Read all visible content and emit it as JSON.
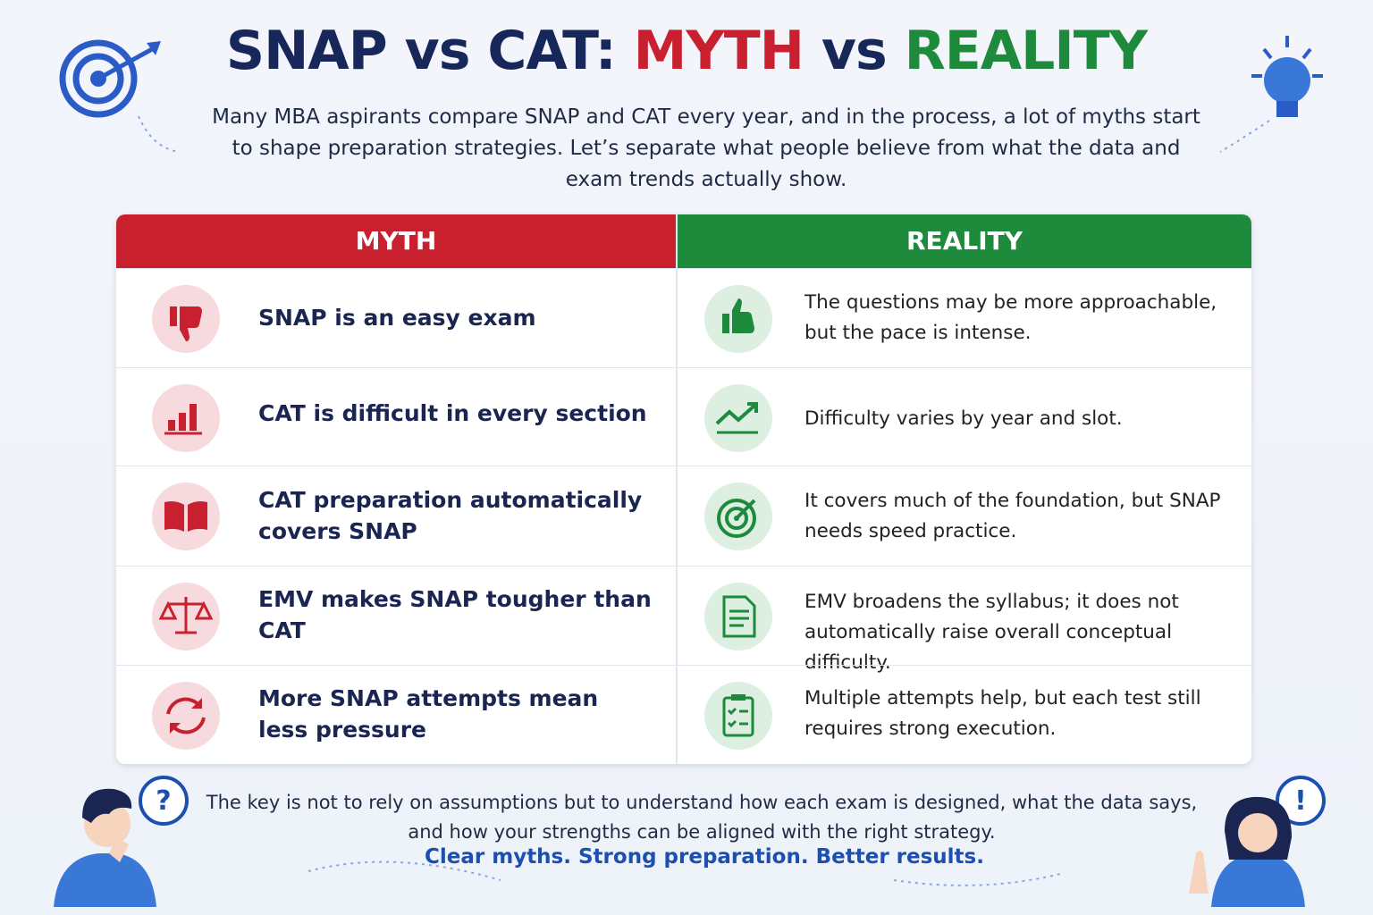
{
  "header": {
    "title": {
      "part1": "SNAP vs CAT:",
      "myth": "MYTH",
      "vs": "vs",
      "reality": "REALITY"
    },
    "intro": "Many MBA aspirants compare SNAP and CAT every year, and in the process, a lot of myths start to shape preparation strategies. Let’s separate what people believe from what the data and exam trends actually show."
  },
  "table": {
    "headers": [
      "MYTH",
      "REALITY"
    ],
    "rows": [
      {
        "myth": "SNAP is an easy exam",
        "reality": "The questions may be more approachable, but the pace is intense."
      },
      {
        "myth": "CAT is difficult in every section",
        "reality": "Difficulty varies by year and slot."
      },
      {
        "myth": "CAT preparation automatically covers SNAP",
        "reality": "It covers much of the foundation, but SNAP needs speed practice."
      },
      {
        "myth": "EMV makes SNAP tougher than CAT",
        "reality": "EMV broadens the syllabus; it does not automatically raise overall conceptual difficulty."
      },
      {
        "myth": "More SNAP attempts mean less pressure",
        "reality": "Multiple attempts help, but each test still requires strong execution."
      }
    ]
  },
  "footer": {
    "text": "The key is not to rely on assumptions but to understand how each exam is designed, what the data says, and how your strengths can be aligned with the right strategy.",
    "tagline": "Clear myths. Strong preparation. Better results."
  }
}
